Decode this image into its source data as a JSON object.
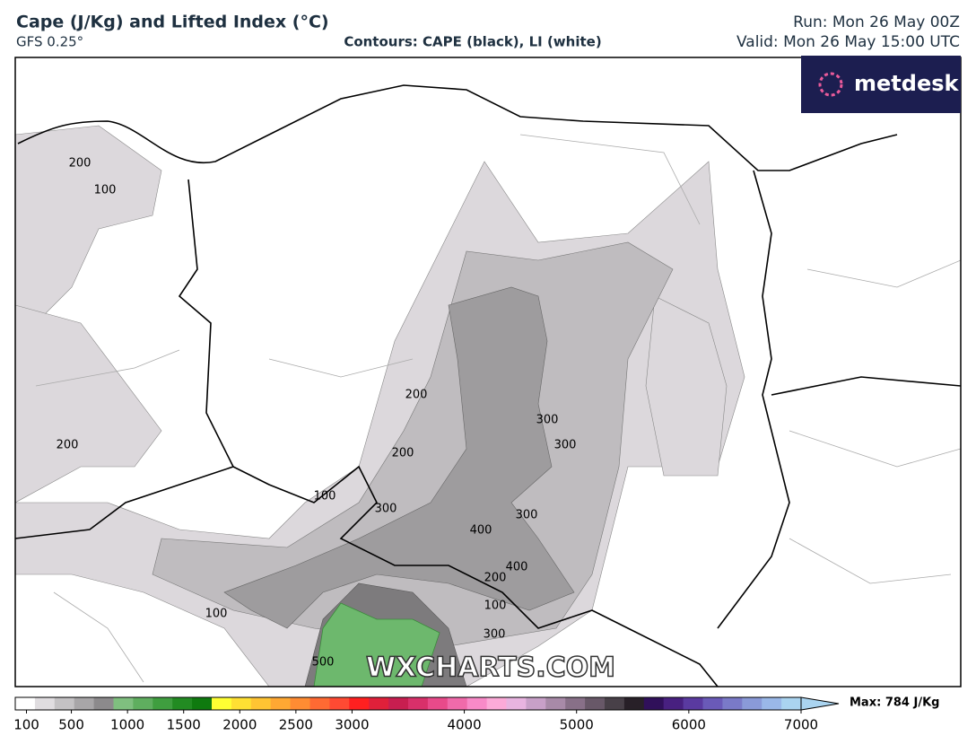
{
  "header": {
    "title": "Cape (J/Kg) and Lifted Index (°C)",
    "model": "GFS 0.25°",
    "contours": "Contours: CAPE (black), LI (white)",
    "run": "Run: Mon 26 May 00Z",
    "valid": "Valid: Mon 26 May 15:00 UTC"
  },
  "logo": "metdesk",
  "watermark": "WXCHARTS.COM",
  "contour_labels": [
    200,
    100,
    200,
    200,
    200,
    100,
    300,
    300,
    300,
    300,
    400,
    400,
    200,
    100,
    300,
    100,
    500
  ],
  "colorbar": {
    "lim": [
      0,
      7000
    ],
    "ticks": [
      100,
      500,
      1000,
      1500,
      2000,
      2500,
      3000,
      4000,
      5000,
      6000,
      7000
    ],
    "max_label": "Max: 784 J/Kg",
    "colors": [
      "#ffffff",
      "#e0dde0",
      "#c4c2c4",
      "#a8a6a8",
      "#8c8a8c",
      "#7fbf7f",
      "#5fae5f",
      "#3f9e3f",
      "#228b22",
      "#0f7a0f",
      "#ffff33",
      "#ffe033",
      "#ffc433",
      "#ffa833",
      "#ff8c33",
      "#ff6a33",
      "#ff4a33",
      "#ff2020",
      "#e0203a",
      "#c81e50",
      "#d8306a",
      "#e84a8a",
      "#f06aaa",
      "#f88ac8",
      "#fcaad8",
      "#e8b4e0",
      "#c8a0c8",
      "#a88aa8",
      "#887088",
      "#685868",
      "#484048",
      "#282028",
      "#30105a",
      "#482080",
      "#5a3aa0",
      "#6a5ab8",
      "#7a7ac8",
      "#8a9ad8",
      "#9ab8e8",
      "#aad4f0"
    ]
  }
}
